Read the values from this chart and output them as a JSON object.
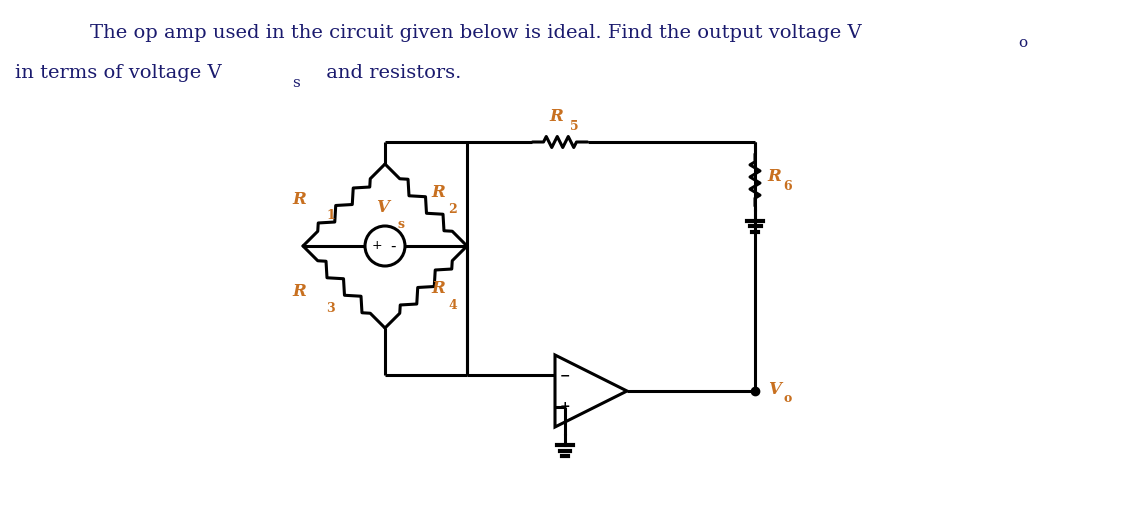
{
  "bg_color": "#ffffff",
  "line_color": "#000000",
  "label_color": "#c87020",
  "title_color": "#1a1a6e",
  "title_line1": "The op amp used in the circuit given below is ideal. Find the output voltage V",
  "title_line2": "in terms of voltage V",
  "title_line2_rest": " and resistors.",
  "font_size_title": 14,
  "font_size_label": 12,
  "font_size_sub": 9,
  "lw": 2.2
}
